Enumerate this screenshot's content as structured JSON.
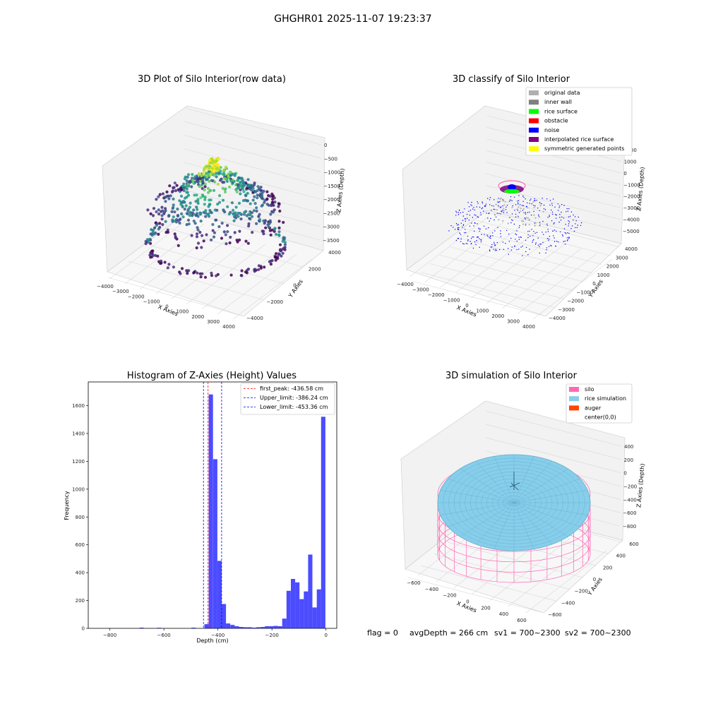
{
  "suptitle": "GHGHR01 2025-11-07 19:23:37",
  "colors": {
    "hist_bar": "#0000ff",
    "first_peak": "#ff0000",
    "limits": "#0000ff",
    "silo": "#ff69b4",
    "rice": "#87ceeb",
    "auger": "#ff4500",
    "original": "#b0b0b0",
    "inner_wall": "#808080",
    "rice_surface": "#00ff00",
    "obstacle": "#ff0000",
    "noise": "#0000ff",
    "interpolated": "#800080",
    "symmetric": "#ffff00"
  },
  "panel1": {
    "title": "3D Plot of Silo Interior(row data)",
    "xlabel": "X Axies",
    "ylabel": "Y Axies",
    "zlabel": "Z Axies (Depth)",
    "xticks": [
      "−4000",
      "−3000",
      "−2000",
      "−1000",
      "0",
      "1000",
      "2000",
      "3000",
      "4000"
    ],
    "yticks": [
      "−4000",
      "−2000",
      "0",
      "2000",
      "4000"
    ],
    "zticks": [
      "0",
      "−500",
      "−1000",
      "−1500",
      "−2000",
      "−2500",
      "−3000",
      "−3500"
    ],
    "colormap": "viridis"
  },
  "panel2": {
    "title": "3D classify of Silo Interior",
    "xlabel": "X Axies",
    "ylabel": "Y Axies",
    "zlabel": "Z Axies (Depth)",
    "xticks": [
      "−4000",
      "−3000",
      "−2000",
      "−1000",
      "0",
      "1000",
      "2000",
      "3000",
      "4000"
    ],
    "yticks": [
      "−4000",
      "−3000",
      "−2000",
      "−1000",
      "0",
      "1000",
      "2000",
      "3000",
      "4000"
    ],
    "zticks": [
      "2000",
      "1000",
      "0",
      "−1000",
      "−2000",
      "−3000",
      "−4000",
      "−5000"
    ],
    "legend": [
      {
        "label": "original data",
        "color": "#b0b0b0"
      },
      {
        "label": "inner wall",
        "color": "#808080"
      },
      {
        "label": "rice surface",
        "color": "#00ff00"
      },
      {
        "label": "obstacle",
        "color": "#ff0000"
      },
      {
        "label": "noise",
        "color": "#0000ff"
      },
      {
        "label": "interpolated rice surface",
        "color": "#800080"
      },
      {
        "label": "symmetric generated points",
        "color": "#ffff00"
      }
    ]
  },
  "chart_data": {
    "type": "bar",
    "title": "Histogram of Z-Axies (Height) Values",
    "xlabel": "Depth (cm)",
    "ylabel": "Frequency",
    "xlim": [
      -880,
      40
    ],
    "ylim": [
      0,
      1770
    ],
    "xticks": [
      -800,
      -600,
      -400,
      -200,
      0
    ],
    "yticks": [
      0,
      200,
      400,
      600,
      800,
      1000,
      1200,
      1400,
      1600
    ],
    "bin_width": 16,
    "bins": [
      {
        "x0": -690,
        "h": 5
      },
      {
        "x0": -626,
        "h": 4
      },
      {
        "x0": -498,
        "h": 5
      },
      {
        "x0": -450,
        "h": 30
      },
      {
        "x0": -434,
        "h": 1680
      },
      {
        "x0": -418,
        "h": 1215
      },
      {
        "x0": -402,
        "h": 485
      },
      {
        "x0": -386,
        "h": 175
      },
      {
        "x0": -370,
        "h": 35
      },
      {
        "x0": -354,
        "h": 25
      },
      {
        "x0": -338,
        "h": 15
      },
      {
        "x0": -322,
        "h": 10
      },
      {
        "x0": -306,
        "h": 8
      },
      {
        "x0": -290,
        "h": 8
      },
      {
        "x0": -274,
        "h": 5
      },
      {
        "x0": -258,
        "h": 8
      },
      {
        "x0": -242,
        "h": 10
      },
      {
        "x0": -226,
        "h": 15
      },
      {
        "x0": -210,
        "h": 15
      },
      {
        "x0": -194,
        "h": 18
      },
      {
        "x0": -178,
        "h": 15
      },
      {
        "x0": -162,
        "h": 70
      },
      {
        "x0": -146,
        "h": 270
      },
      {
        "x0": -130,
        "h": 355
      },
      {
        "x0": -114,
        "h": 330
      },
      {
        "x0": -98,
        "h": 210
      },
      {
        "x0": -82,
        "h": 265
      },
      {
        "x0": -66,
        "h": 530
      },
      {
        "x0": -50,
        "h": 150
      },
      {
        "x0": -34,
        "h": 280
      },
      {
        "x0": -18,
        "h": 1520
      }
    ],
    "vlines": [
      {
        "name": "first_peak: -436.58 cm",
        "x": -436.58,
        "color": "#ff0000"
      },
      {
        "name": "Upper_limit: -386.24 cm",
        "x": -386.24,
        "color": "#0000ff"
      },
      {
        "name": "Lower_limit: -453.36 cm",
        "x": -453.36,
        "color": "#0000ff"
      }
    ]
  },
  "panel4": {
    "title": "3D simulation of Silo Interior",
    "xlabel": "X Axies",
    "ylabel": "Y Axies",
    "zlabel": "Z Axies (Depth)",
    "xticks": [
      "−600",
      "−400",
      "−200",
      "0",
      "200",
      "400",
      "600"
    ],
    "yticks": [
      "−600",
      "−400",
      "−200",
      "0",
      "200",
      "400",
      "600"
    ],
    "zticks": [
      "400",
      "200",
      "0",
      "−200",
      "−400",
      "−600",
      "−800"
    ],
    "legend": [
      {
        "label": "silo",
        "color": "#ff69b4"
      },
      {
        "label": "rice simulation",
        "color": "#87ceeb"
      },
      {
        "label": "auger",
        "color": "#ff4500"
      },
      {
        "label": "center(0,0)",
        "color": "none"
      }
    ]
  },
  "footer": {
    "flag": "flag = 0",
    "avg": "avgDepth = 266 cm",
    "sv1": "sv1 = 700~2300",
    "sv2": "sv2 = 700~2300"
  }
}
